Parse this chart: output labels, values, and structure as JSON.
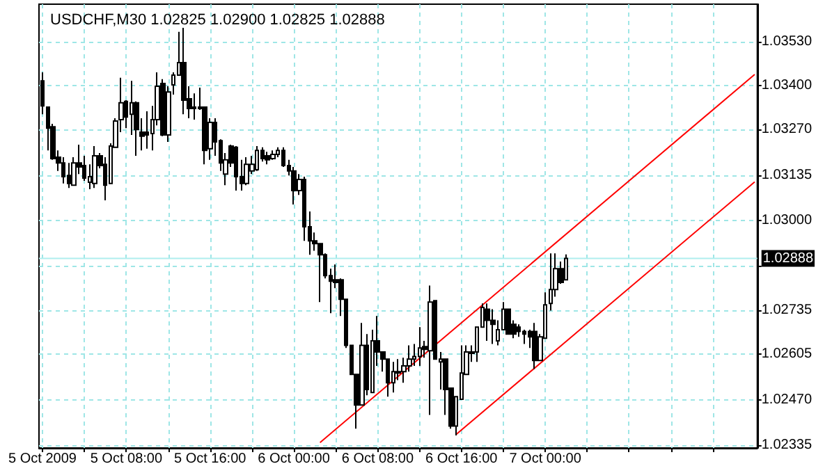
{
  "chart_data": {
    "type": "candlestick",
    "title": "USDCHF,M30 1.02825 1.02900 1.02825 1.02888",
    "color": "#000000",
    "grid": true,
    "x": [
      "2009-10-05T00:00",
      "2009-10-05T00:30",
      "2009-10-05T01:00",
      "2009-10-05T01:30",
      "2009-10-05T02:00",
      "2009-10-05T02:30",
      "2009-10-05T03:00",
      "2009-10-05T03:30",
      "2009-10-05T04:00",
      "2009-10-05T04:30",
      "2009-10-05T05:00",
      "2009-10-05T05:30",
      "2009-10-05T06:00",
      "2009-10-05T06:30",
      "2009-10-05T07:00",
      "2009-10-05T07:30",
      "2009-10-05T08:00",
      "2009-10-05T08:30",
      "2009-10-05T09:00",
      "2009-10-05T09:30",
      "2009-10-05T10:00",
      "2009-10-05T10:30",
      "2009-10-05T11:00",
      "2009-10-05T11:30",
      "2009-10-05T12:00",
      "2009-10-05T12:30",
      "2009-10-05T13:00",
      "2009-10-05T13:30",
      "2009-10-05T14:00",
      "2009-10-05T14:30",
      "2009-10-05T15:00",
      "2009-10-05T15:30",
      "2009-10-05T16:00",
      "2009-10-05T16:30",
      "2009-10-05T17:00",
      "2009-10-05T17:30",
      "2009-10-05T18:00",
      "2009-10-05T18:30",
      "2009-10-05T19:00",
      "2009-10-05T19:30",
      "2009-10-05T20:00",
      "2009-10-05T20:30",
      "2009-10-05T21:00",
      "2009-10-05T21:30",
      "2009-10-05T22:00",
      "2009-10-05T22:30",
      "2009-10-05T23:00",
      "2009-10-05T23:30",
      "2009-10-06T00:00",
      "2009-10-06T00:30",
      "2009-10-06T01:00",
      "2009-10-06T01:30",
      "2009-10-06T02:00",
      "2009-10-06T02:30",
      "2009-10-06T03:00",
      "2009-10-06T03:30",
      "2009-10-06T04:00",
      "2009-10-06T04:30",
      "2009-10-06T05:00",
      "2009-10-06T05:30",
      "2009-10-06T06:00",
      "2009-10-06T06:30",
      "2009-10-06T07:00",
      "2009-10-06T07:30",
      "2009-10-06T08:00",
      "2009-10-06T08:30",
      "2009-10-06T09:00",
      "2009-10-06T09:30",
      "2009-10-06T10:00",
      "2009-10-06T10:30",
      "2009-10-06T11:00",
      "2009-10-06T11:30",
      "2009-10-06T12:00",
      "2009-10-06T12:30",
      "2009-10-06T13:00",
      "2009-10-06T13:30",
      "2009-10-06T14:00",
      "2009-10-06T14:30",
      "2009-10-06T15:00",
      "2009-10-06T15:30",
      "2009-10-06T16:00",
      "2009-10-06T16:30",
      "2009-10-06T17:00",
      "2009-10-06T17:30",
      "2009-10-06T18:00",
      "2009-10-06T18:30",
      "2009-10-06T19:00",
      "2009-10-06T19:30",
      "2009-10-06T20:00",
      "2009-10-06T20:30",
      "2009-10-06T21:00",
      "2009-10-06T21:30",
      "2009-10-06T22:00",
      "2009-10-06T22:30",
      "2009-10-06T23:00",
      "2009-10-06T23:30",
      "2009-10-07T00:00",
      "2009-10-07T00:30",
      "2009-10-07T01:00",
      "2009-10-07T01:30",
      "2009-10-07T02:00"
    ],
    "ohlc": [
      [
        1.03414,
        1.03439,
        1.03315,
        1.0334
      ],
      [
        1.03336,
        1.03336,
        1.03208,
        1.03274
      ],
      [
        1.03278,
        1.03287,
        1.0318,
        1.03184
      ],
      [
        1.03188,
        1.03208,
        1.03147,
        1.03171
      ],
      [
        1.03171,
        1.03188,
        1.0311,
        1.0313
      ],
      [
        1.03134,
        1.03171,
        1.03097,
        1.0311
      ],
      [
        1.03105,
        1.03188,
        1.03105,
        1.03171
      ],
      [
        1.03171,
        1.03225,
        1.03138,
        1.03159
      ],
      [
        1.03163,
        1.03192,
        1.03118,
        1.03126
      ],
      [
        1.03114,
        1.03167,
        1.03093,
        1.0313
      ],
      [
        1.0311,
        1.03221,
        1.03097,
        1.03192
      ],
      [
        1.03192,
        1.032,
        1.03155,
        1.03163
      ],
      [
        1.03167,
        1.03188,
        1.0306,
        1.03105
      ],
      [
        1.0311,
        1.03229,
        1.0311,
        1.03221
      ],
      [
        1.03217,
        1.03303,
        1.03217,
        1.03295
      ],
      [
        1.03299,
        1.03423,
        1.03262,
        1.03349
      ],
      [
        1.03353,
        1.03357,
        1.03274,
        1.03307
      ],
      [
        1.03315,
        1.03414,
        1.03254,
        1.03349
      ],
      [
        1.03349,
        1.03353,
        1.03192,
        1.0327
      ],
      [
        1.03262,
        1.03303,
        1.03208,
        1.0325
      ],
      [
        1.03262,
        1.03324,
        1.03213,
        1.03254
      ],
      [
        1.03258,
        1.0334,
        1.03208,
        1.03299
      ],
      [
        1.03299,
        1.03439,
        1.03282,
        1.03398
      ],
      [
        1.03406,
        1.03419,
        1.0325,
        1.03254
      ],
      [
        1.03254,
        1.03398,
        1.03233,
        1.03381
      ],
      [
        1.03402,
        1.03439,
        1.03373,
        1.03431
      ],
      [
        1.03431,
        1.03559,
        1.03431,
        1.03468
      ],
      [
        1.03468,
        1.03571,
        1.03315,
        1.03357
      ],
      [
        1.03361,
        1.03398,
        1.03303,
        1.03332
      ],
      [
        1.03336,
        1.03377,
        1.03299,
        1.03332
      ],
      [
        1.03332,
        1.03394,
        1.03328,
        1.03336
      ],
      [
        1.03336,
        1.03336,
        1.03167,
        1.03208
      ],
      [
        1.03213,
        1.03303,
        1.0318,
        1.03291
      ],
      [
        1.03291,
        1.03303,
        1.03192,
        1.03233
      ],
      [
        1.03237,
        1.03241,
        1.03147,
        1.03171
      ],
      [
        1.03138,
        1.032,
        1.03105,
        1.0318
      ],
      [
        1.03221,
        1.03225,
        1.03159,
        1.03171
      ],
      [
        1.03217,
        1.03221,
        1.03089,
        1.0313
      ],
      [
        1.0313,
        1.0318,
        1.03089,
        1.0311
      ],
      [
        1.0311,
        1.03188,
        1.03105,
        1.03167
      ],
      [
        1.03147,
        1.03192,
        1.03138,
        1.03167
      ],
      [
        1.03151,
        1.03221,
        1.03147,
        1.03208
      ],
      [
        1.03208,
        1.03217,
        1.03175,
        1.03184
      ],
      [
        1.03192,
        1.03204,
        1.03167,
        1.0318
      ],
      [
        1.03184,
        1.03208,
        1.0318,
        1.03196
      ],
      [
        1.03196,
        1.03217,
        1.03188,
        1.03208
      ],
      [
        1.03208,
        1.03217,
        1.03159,
        1.03163
      ],
      [
        1.03163,
        1.0318,
        1.03134,
        1.03147
      ],
      [
        1.03147,
        1.03159,
        1.03048,
        1.03089
      ],
      [
        1.03089,
        1.03138,
        1.03076,
        1.03122
      ],
      [
        1.03122,
        1.0313,
        1.0294,
        1.02982
      ],
      [
        1.02982,
        1.03027,
        1.02899,
        1.0294
      ],
      [
        1.0294,
        1.02965,
        1.02911,
        1.02932
      ],
      [
        1.02932,
        1.02932,
        1.02759,
        1.02899
      ],
      [
        1.02899,
        1.02903,
        1.02829,
        1.02837
      ],
      [
        1.02837,
        1.02858,
        1.02726,
        1.02821
      ],
      [
        1.02825,
        1.0287,
        1.028,
        1.02817
      ],
      [
        1.02825,
        1.02829,
        1.02718,
        1.02767
      ],
      [
        1.02767,
        1.02767,
        1.02623,
        1.02631
      ],
      [
        1.02631,
        1.02631,
        1.02545,
        1.02545
      ],
      [
        1.02545,
        1.02545,
        1.02384,
        1.02454
      ],
      [
        1.02454,
        1.02697,
        1.02454,
        1.02631
      ],
      [
        1.02631,
        1.02664,
        1.02483,
        1.025
      ],
      [
        1.02491,
        1.02677,
        1.02491,
        1.02644
      ],
      [
        1.02644,
        1.02718,
        1.0257,
        1.02611
      ],
      [
        1.02611,
        1.02611,
        1.02553,
        1.0259
      ],
      [
        1.0259,
        1.0259,
        1.02479,
        1.0252
      ],
      [
        1.0252,
        1.02582,
        1.02491,
        1.02553
      ],
      [
        1.02553,
        1.0259,
        1.02528,
        1.02549
      ],
      [
        1.02553,
        1.02594,
        1.0252,
        1.0257
      ],
      [
        1.0257,
        1.02631,
        1.02553,
        1.0259
      ],
      [
        1.0259,
        1.02635,
        1.0257,
        1.02598
      ],
      [
        1.02598,
        1.02685,
        1.0257,
        1.02623
      ],
      [
        1.02627,
        1.02644,
        1.02594,
        1.02619
      ],
      [
        1.02615,
        1.02808,
        1.02425,
        1.02759
      ],
      [
        1.02763,
        1.02763,
        1.0259,
        1.0259
      ],
      [
        1.02582,
        1.02611,
        1.025,
        1.0259
      ],
      [
        1.0259,
        1.0259,
        1.02425,
        1.025
      ],
      [
        1.02504,
        1.02504,
        1.02384,
        1.02392
      ],
      [
        1.02392,
        1.02479,
        1.02364,
        1.02479
      ],
      [
        1.02471,
        1.02631,
        1.02471,
        1.02549
      ],
      [
        1.02545,
        1.02631,
        1.02545,
        1.02611
      ],
      [
        1.02611,
        1.02631,
        1.02582,
        1.02607
      ],
      [
        1.02611,
        1.02685,
        1.02582,
        1.02685
      ],
      [
        1.02685,
        1.02755,
        1.02685,
        1.02743
      ],
      [
        1.02738,
        1.02755,
        1.02644,
        1.02705
      ],
      [
        1.02705,
        1.02738,
        1.02635,
        1.02693
      ],
      [
        1.02644,
        1.02705,
        1.02631,
        1.02677
      ],
      [
        1.02677,
        1.02759,
        1.02677,
        1.02738
      ],
      [
        1.02738,
        1.02738,
        1.02664,
        1.02664
      ],
      [
        1.02693,
        1.02705,
        1.02652,
        1.02664
      ],
      [
        1.02685,
        1.02693,
        1.02656,
        1.02672
      ],
      [
        1.02672,
        1.02677,
        1.02635,
        1.02664
      ],
      [
        1.02672,
        1.02677,
        1.02623,
        1.02656
      ],
      [
        1.02672,
        1.02697,
        1.02561,
        1.02586
      ],
      [
        1.02586,
        1.02664,
        1.02586,
        1.02656
      ],
      [
        1.02652,
        1.02788,
        1.02652,
        1.02751
      ],
      [
        1.02755,
        1.02903,
        1.02734,
        1.02796
      ],
      [
        1.02796,
        1.02903,
        1.02775,
        1.02858
      ],
      [
        1.02858,
        1.02879,
        1.02813,
        1.02817
      ],
      [
        1.02825,
        1.029,
        1.02825,
        1.02888
      ]
    ],
    "series": [
      {
        "type": "line",
        "color": "#ff0000",
        "x": [
          "2009-10-06T02:30",
          "2009-10-07T20:00"
        ],
        "values": [
          1.02343,
          1.03433
        ]
      },
      {
        "type": "line",
        "color": "#ff0000",
        "x": [
          "2009-10-06T15:30",
          "2009-10-07T20:00"
        ],
        "values": [
          1.02367,
          1.03115
        ]
      }
    ],
    "xlim": [
      "2009-10-04T23:40",
      "2009-10-07T20:15"
    ],
    "xticks": [
      {
        "value": "2009-10-05T00:00",
        "label": "5 Oct 2009"
      },
      {
        "value": "2009-10-05T04:00",
        "label": null
      },
      {
        "value": "2009-10-05T08:00",
        "label": "5 Oct 08:00"
      },
      {
        "value": "2009-10-05T12:00",
        "label": null
      },
      {
        "value": "2009-10-05T16:00",
        "label": "5 Oct 16:00"
      },
      {
        "value": "2009-10-05T20:00",
        "label": null
      },
      {
        "value": "2009-10-06T00:00",
        "label": "6 Oct 00:00"
      },
      {
        "value": "2009-10-06T04:00",
        "label": null
      },
      {
        "value": "2009-10-06T08:00",
        "label": "6 Oct 08:00"
      },
      {
        "value": "2009-10-06T12:00",
        "label": null
      },
      {
        "value": "2009-10-06T16:00",
        "label": "6 Oct 16:00"
      },
      {
        "value": "2009-10-06T20:00",
        "label": null
      },
      {
        "value": "2009-10-07T00:00",
        "label": "7 Oct 00:00"
      },
      {
        "value": "2009-10-07T04:00",
        "label": null
      },
      {
        "value": "2009-10-07T08:00",
        "label": null
      },
      {
        "value": "2009-10-07T12:00",
        "label": null
      },
      {
        "value": "2009-10-07T16:00",
        "label": null
      }
    ],
    "ylim": [
      1.02327,
      1.03641
    ],
    "yticks": [
      {
        "value": 1.02335,
        "label": "1.02335"
      },
      {
        "value": 1.0247,
        "label": "1.02470"
      },
      {
        "value": 1.02605,
        "label": "1.02605"
      },
      {
        "value": 1.02735,
        "label": "1.02735"
      },
      {
        "value": 1.02865,
        "label": null
      },
      {
        "value": 1.03,
        "label": "1.03000"
      },
      {
        "value": 1.03135,
        "label": "1.03135"
      },
      {
        "value": 1.0327,
        "label": "1.03270"
      },
      {
        "value": 1.034,
        "label": "1.03400"
      },
      {
        "value": 1.0353,
        "label": "1.03530"
      }
    ],
    "ref_lines": [
      {
        "axis": "y",
        "value": 1.02888,
        "label": "1.02888",
        "color": "#afeeee"
      }
    ]
  }
}
